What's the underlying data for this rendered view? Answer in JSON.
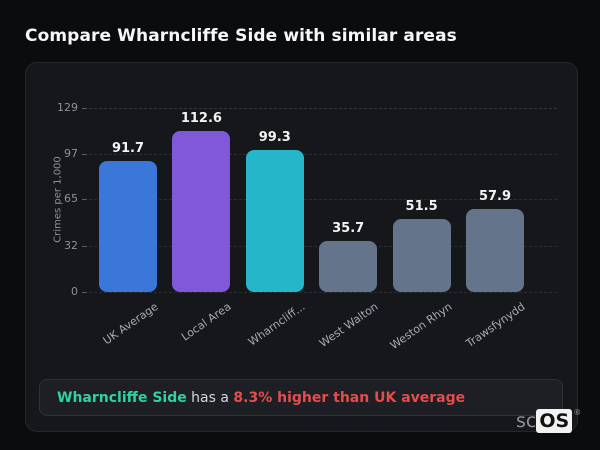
{
  "page": {
    "title": "Compare Wharncliffe Side with similar areas"
  },
  "chart_data": {
    "type": "bar",
    "categories": [
      "UK Average",
      "Local Area",
      "Wharncliff...",
      "West Walton",
      "Weston Rhyn",
      "Trawsfynydd"
    ],
    "values": [
      91.7,
      112.6,
      99.3,
      35.7,
      51.5,
      57.9
    ],
    "value_labels": [
      "91.7",
      "112.6",
      "99.3",
      "35.7",
      "51.5",
      "57.9"
    ],
    "bar_colors": [
      "#3b76d9",
      "#8158d8",
      "#25b6c9",
      "#64748b",
      "#64748b",
      "#64748b"
    ],
    "title": "",
    "xlabel": "",
    "ylabel": "Crimes per 1,000",
    "ylim": [
      0,
      129
    ],
    "yticks": [
      0,
      32,
      65,
      97,
      129
    ],
    "grid": "dashed-horizontal",
    "legend": "none"
  },
  "footer": {
    "highlight": "Wharncliffe Side",
    "middle": " has a ",
    "stat": "8.3% higher than UK average",
    "highlight_color": "#2dd4a0",
    "stat_color": "#e74c4c"
  },
  "logo": {
    "prefix": "sc",
    "suffix": "OS",
    "registered": "®"
  }
}
